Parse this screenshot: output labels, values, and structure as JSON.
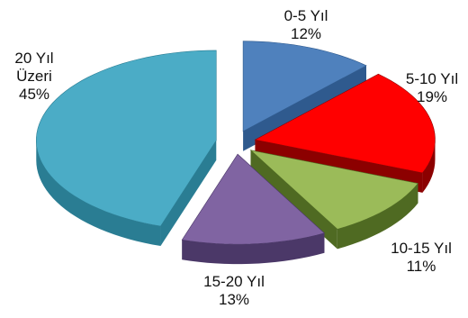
{
  "chart_data": {
    "type": "pie",
    "style": "3d-exploded",
    "slices": [
      {
        "label_lines": [
          "0-5 Yıl"
        ],
        "value": 12,
        "pct_text": "12%",
        "color": "#4f81bd",
        "dark": "#2f5a8e"
      },
      {
        "label_lines": [
          "5-10 Yıl"
        ],
        "value": 19,
        "pct_text": "19%",
        "color": "#ff0000",
        "dark": "#8c0000"
      },
      {
        "label_lines": [
          "10-15 Yıl"
        ],
        "value": 11,
        "pct_text": "11%",
        "color": "#9bbb59",
        "dark": "#4f6a22"
      },
      {
        "label_lines": [
          "15-20 Yıl"
        ],
        "value": 13,
        "pct_text": "13%",
        "color": "#8064a2",
        "dark": "#4b3868"
      },
      {
        "label_lines": [
          "20 Yıl",
          "Üzeri"
        ],
        "value": 45,
        "pct_text": "45%",
        "color": "#4bacc6",
        "dark": "#2a7d93"
      }
    ]
  }
}
